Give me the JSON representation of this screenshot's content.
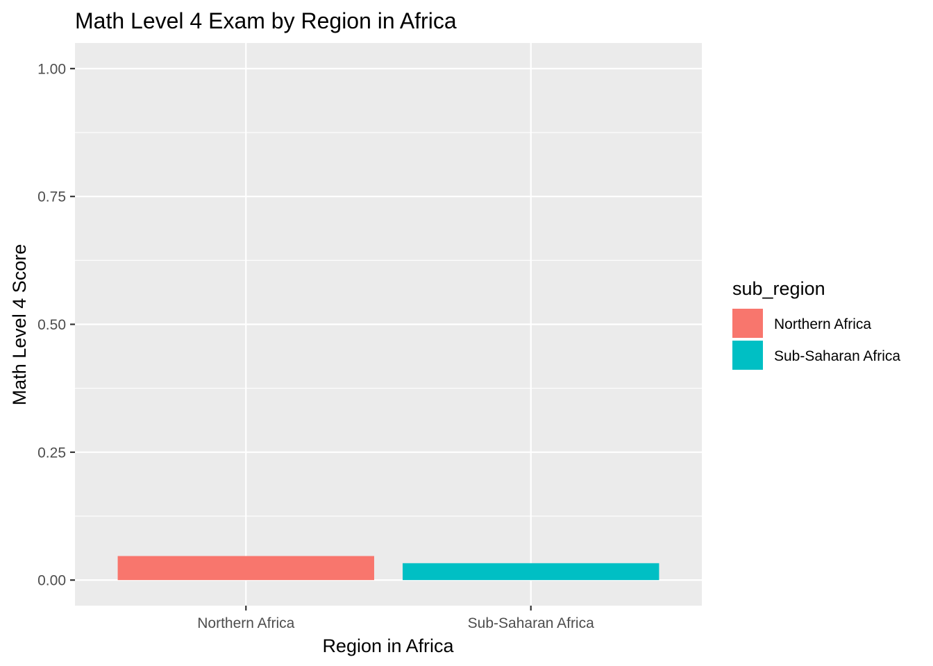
{
  "chart_data": {
    "type": "bar",
    "title": "Math Level 4 Exam by Region in Africa",
    "xlabel": "Region in Africa",
    "ylabel": "Math Level 4 Score",
    "categories": [
      "Northern Africa",
      "Sub-Saharan Africa"
    ],
    "values": [
      0.047,
      0.033
    ],
    "ylim": [
      -0.05,
      1.05
    ],
    "yticks": [
      0,
      0.25,
      0.5,
      0.75,
      1
    ],
    "ytick_labels": [
      "0.00",
      "0.25",
      "0.50",
      "0.75",
      "1.00"
    ],
    "grid": true,
    "legend": {
      "title": "sub_region",
      "position": "right",
      "entries": [
        "Northern Africa",
        "Sub-Saharan Africa"
      ]
    },
    "colors": {
      "series": [
        "#F8766D",
        "#00BFC4"
      ],
      "panel_background": "#EBEBEB",
      "grid": "#FFFFFF",
      "tick_text": "#4D4D4D",
      "tick_mark": "#333333"
    }
  }
}
